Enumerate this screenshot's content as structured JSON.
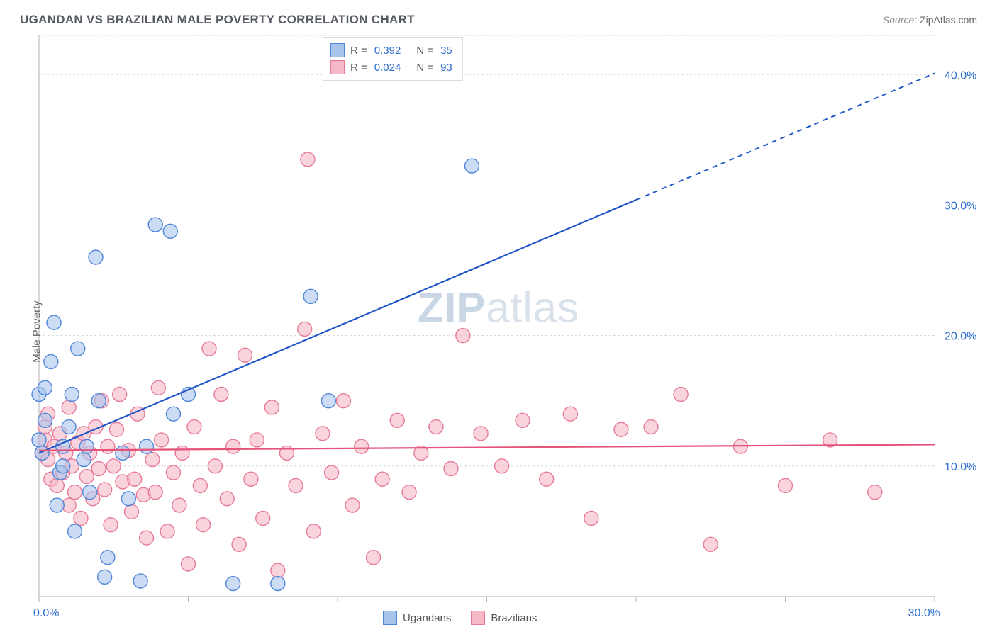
{
  "title": "UGANDAN VS BRAZILIAN MALE POVERTY CORRELATION CHART",
  "source_label": "Source: ",
  "source_value": "ZipAtlas.com",
  "ylabel": "Male Poverty",
  "watermark_a": "ZIP",
  "watermark_b": "atlas",
  "chart": {
    "type": "scatter",
    "xlim": [
      0,
      30
    ],
    "ylim": [
      0,
      43
    ],
    "x_ticks": [
      0,
      5,
      10,
      15,
      20,
      25,
      30
    ],
    "x_tick_labels": {
      "0": "0.0%",
      "30": "30.0%"
    },
    "y_gridlines": [
      10,
      20,
      30,
      40,
      43
    ],
    "y_tick_labels": {
      "10": "10.0%",
      "20": "20.0%",
      "30": "30.0%",
      "40": "40.0%"
    },
    "grid_color": "#d8d8d8",
    "axis_color": "#b0b0b0",
    "background_color": "#ffffff",
    "marker_radius": 10,
    "series": [
      {
        "name": "Ugandans",
        "color_fill": "#a8c4ec",
        "color_stroke": "#4f86d9",
        "R": 0.392,
        "N": 35,
        "trend": {
          "intercept": 11.0,
          "slope": 0.97,
          "solid_xmax": 20,
          "dash_xmax": 30,
          "color": "#2257c8"
        },
        "points": [
          [
            0.0,
            15.5
          ],
          [
            0.0,
            12.0
          ],
          [
            0.1,
            11.0
          ],
          [
            0.2,
            13.5
          ],
          [
            0.2,
            16.0
          ],
          [
            0.4,
            18.0
          ],
          [
            0.5,
            21.0
          ],
          [
            0.6,
            7.0
          ],
          [
            0.7,
            9.5
          ],
          [
            0.8,
            11.5
          ],
          [
            0.8,
            10.0
          ],
          [
            1.0,
            13.0
          ],
          [
            1.1,
            15.5
          ],
          [
            1.2,
            5.0
          ],
          [
            1.3,
            19.0
          ],
          [
            1.5,
            10.5
          ],
          [
            1.6,
            11.5
          ],
          [
            1.7,
            8.0
          ],
          [
            1.9,
            26.0
          ],
          [
            2.0,
            15.0
          ],
          [
            2.2,
            1.5
          ],
          [
            2.3,
            3.0
          ],
          [
            2.8,
            11.0
          ],
          [
            3.0,
            7.5
          ],
          [
            3.4,
            1.2
          ],
          [
            3.6,
            11.5
          ],
          [
            3.9,
            28.5
          ],
          [
            4.4,
            28.0
          ],
          [
            4.5,
            14.0
          ],
          [
            5.0,
            15.5
          ],
          [
            6.5,
            1.0
          ],
          [
            8.0,
            1.0
          ],
          [
            9.1,
            23.0
          ],
          [
            9.7,
            15.0
          ],
          [
            14.5,
            33.0
          ]
        ]
      },
      {
        "name": "Brazilians",
        "color_fill": "#f6b7c6",
        "color_stroke": "#e77a97",
        "R": 0.024,
        "N": 93,
        "trend": {
          "intercept": 11.2,
          "slope": 0.015,
          "solid_xmax": 30,
          "dash_xmax": 30,
          "color": "#e5537a"
        },
        "points": [
          [
            0.1,
            11.0
          ],
          [
            0.2,
            12.0
          ],
          [
            0.2,
            13.0
          ],
          [
            0.3,
            10.5
          ],
          [
            0.3,
            14.0
          ],
          [
            0.4,
            9.0
          ],
          [
            0.5,
            11.5
          ],
          [
            0.6,
            8.5
          ],
          [
            0.7,
            12.5
          ],
          [
            0.8,
            9.5
          ],
          [
            0.9,
            11.0
          ],
          [
            1.0,
            7.0
          ],
          [
            1.0,
            14.5
          ],
          [
            1.1,
            10.0
          ],
          [
            1.2,
            8.0
          ],
          [
            1.3,
            11.8
          ],
          [
            1.4,
            6.0
          ],
          [
            1.5,
            12.5
          ],
          [
            1.6,
            9.2
          ],
          [
            1.7,
            11.0
          ],
          [
            1.8,
            7.5
          ],
          [
            1.9,
            13.0
          ],
          [
            2.0,
            9.8
          ],
          [
            2.1,
            15.0
          ],
          [
            2.2,
            8.2
          ],
          [
            2.3,
            11.5
          ],
          [
            2.4,
            5.5
          ],
          [
            2.5,
            10.0
          ],
          [
            2.6,
            12.8
          ],
          [
            2.7,
            15.5
          ],
          [
            2.8,
            8.8
          ],
          [
            3.0,
            11.2
          ],
          [
            3.1,
            6.5
          ],
          [
            3.2,
            9.0
          ],
          [
            3.3,
            14.0
          ],
          [
            3.5,
            7.8
          ],
          [
            3.6,
            4.5
          ],
          [
            3.8,
            10.5
          ],
          [
            3.9,
            8.0
          ],
          [
            4.0,
            16.0
          ],
          [
            4.1,
            12.0
          ],
          [
            4.3,
            5.0
          ],
          [
            4.5,
            9.5
          ],
          [
            4.7,
            7.0
          ],
          [
            4.8,
            11.0
          ],
          [
            5.0,
            2.5
          ],
          [
            5.2,
            13.0
          ],
          [
            5.4,
            8.5
          ],
          [
            5.5,
            5.5
          ],
          [
            5.7,
            19.0
          ],
          [
            5.9,
            10.0
          ],
          [
            6.1,
            15.5
          ],
          [
            6.3,
            7.5
          ],
          [
            6.5,
            11.5
          ],
          [
            6.7,
            4.0
          ],
          [
            6.9,
            18.5
          ],
          [
            7.1,
            9.0
          ],
          [
            7.3,
            12.0
          ],
          [
            7.5,
            6.0
          ],
          [
            7.8,
            14.5
          ],
          [
            8.0,
            2.0
          ],
          [
            8.3,
            11.0
          ],
          [
            8.6,
            8.5
          ],
          [
            8.9,
            20.5
          ],
          [
            9.0,
            33.5
          ],
          [
            9.2,
            5.0
          ],
          [
            9.5,
            12.5
          ],
          [
            9.8,
            9.5
          ],
          [
            10.2,
            15.0
          ],
          [
            10.5,
            7.0
          ],
          [
            10.8,
            11.5
          ],
          [
            11.2,
            3.0
          ],
          [
            11.5,
            9.0
          ],
          [
            12.0,
            13.5
          ],
          [
            12.4,
            8.0
          ],
          [
            12.8,
            11.0
          ],
          [
            13.3,
            13.0
          ],
          [
            13.8,
            9.8
          ],
          [
            14.2,
            20.0
          ],
          [
            14.8,
            12.5
          ],
          [
            15.5,
            10.0
          ],
          [
            16.2,
            13.5
          ],
          [
            17.0,
            9.0
          ],
          [
            17.8,
            14.0
          ],
          [
            18.5,
            6.0
          ],
          [
            19.5,
            12.8
          ],
          [
            20.5,
            13.0
          ],
          [
            21.5,
            15.5
          ],
          [
            22.5,
            4.0
          ],
          [
            23.5,
            11.5
          ],
          [
            25.0,
            8.5
          ],
          [
            26.5,
            12.0
          ],
          [
            28.0,
            8.0
          ]
        ]
      }
    ]
  },
  "legend_top": {
    "r_label": "R =",
    "n_label": "N ="
  },
  "legend_bottom": [
    "Ugandans",
    "Brazilians"
  ]
}
